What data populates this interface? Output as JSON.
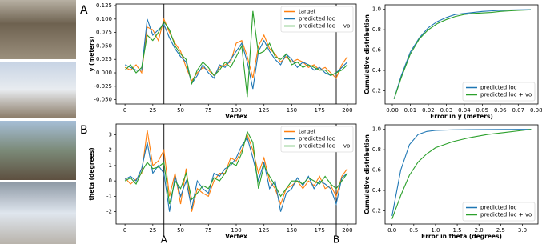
{
  "chart_data": [
    {
      "type": "line",
      "panel_label": "A",
      "xlabel": "Vertex",
      "ylabel": "y (meters)",
      "x": [
        0,
        5,
        10,
        15,
        20,
        25,
        30,
        35,
        40,
        45,
        50,
        55,
        60,
        65,
        70,
        75,
        80,
        85,
        90,
        95,
        100,
        105,
        110,
        115,
        120,
        125,
        130,
        135,
        140,
        145,
        150,
        155,
        160,
        165,
        170,
        175,
        180,
        185,
        190,
        195,
        200
      ],
      "series": [
        {
          "name": "target",
          "color": "#ff7f0e",
          "values": [
            0.01,
            0.005,
            0.015,
            0.0,
            0.085,
            0.08,
            0.06,
            0.1,
            0.075,
            0.055,
            0.04,
            0.01,
            -0.015,
            0.0,
            0.01,
            0.005,
            -0.005,
            0.01,
            0.015,
            0.02,
            0.055,
            0.06,
            0.03,
            -0.01,
            0.05,
            0.07,
            0.045,
            0.035,
            0.02,
            0.03,
            0.02,
            0.025,
            0.02,
            0.01,
            0.015,
            0.005,
            0.01,
            0.0,
            -0.01,
            0.015,
            0.03
          ]
        },
        {
          "name": "predicted loc",
          "color": "#1f77b4",
          "values": [
            0.015,
            0.01,
            0.005,
            0.005,
            0.1,
            0.07,
            0.08,
            0.09,
            0.065,
            0.045,
            0.03,
            0.02,
            -0.02,
            -0.005,
            0.015,
            0.0,
            -0.01,
            0.015,
            0.01,
            0.025,
            0.04,
            0.055,
            0.02,
            -0.03,
            0.04,
            0.06,
            0.04,
            0.025,
            0.015,
            0.035,
            0.025,
            0.01,
            0.02,
            0.015,
            0.005,
            0.01,
            0.0,
            -0.005,
            0.0,
            0.01,
            0.02
          ]
        },
        {
          "name": "predicted loc + vo",
          "color": "#2ca02c",
          "values": [
            0.005,
            0.015,
            0.0,
            0.01,
            0.07,
            0.06,
            0.075,
            0.095,
            0.08,
            0.05,
            0.035,
            0.025,
            -0.02,
            0.005,
            0.02,
            0.01,
            -0.005,
            0.005,
            0.02,
            0.01,
            0.03,
            0.05,
            -0.045,
            0.115,
            0.035,
            0.04,
            0.055,
            0.03,
            0.025,
            0.035,
            0.015,
            0.02,
            0.01,
            0.015,
            0.01,
            0.005,
            0.005,
            -0.005,
            0.0,
            0.005,
            0.015
          ]
        }
      ],
      "xlim": [
        -8,
        208
      ],
      "xticks": [
        0,
        25,
        50,
        75,
        100,
        125,
        150,
        175,
        200
      ],
      "ylim": [
        -0.058,
        0.128
      ],
      "yticks": [
        {
          "value": -0.05,
          "label": "-0.050"
        },
        -0.025,
        {
          "value": 0,
          "label": "0.000"
        },
        0.025,
        {
          "value": 0.05,
          "label": "0.050"
        },
        0.075,
        {
          "value": 0.1,
          "label": "0.100"
        },
        0.125
      ],
      "vlines": [
        35,
        190
      ],
      "legend": "upper right"
    },
    {
      "type": "line",
      "panel_label": "B",
      "xlabel": "Vertex",
      "ylabel": "theta (degrees)",
      "x": [
        0,
        5,
        10,
        15,
        20,
        25,
        30,
        35,
        40,
        45,
        50,
        55,
        60,
        65,
        70,
        75,
        80,
        85,
        90,
        95,
        100,
        105,
        110,
        115,
        120,
        125,
        130,
        135,
        140,
        145,
        150,
        155,
        160,
        165,
        170,
        175,
        180,
        185,
        190,
        195,
        200
      ],
      "series": [
        {
          "name": "target",
          "color": "#ff7f0e",
          "values": [
            0.2,
            -0.2,
            0.1,
            0.5,
            3.3,
            1.0,
            1.3,
            2.0,
            -1.0,
            0.5,
            -1.5,
            0.8,
            -2.0,
            -0.5,
            -0.8,
            -1.0,
            0.0,
            0.5,
            0.5,
            1.5,
            1.3,
            2.0,
            3.0,
            2.0,
            0.5,
            1.5,
            0.0,
            -0.5,
            -1.5,
            -0.5,
            -0.3,
            0.0,
            -0.5,
            0.0,
            -0.3,
            0.3,
            -0.5,
            -0.3,
            -1.0,
            0.3,
            0.8
          ]
        },
        {
          "name": "predicted loc",
          "color": "#1f77b4",
          "values": [
            0.1,
            0.3,
            0.0,
            0.8,
            2.5,
            0.5,
            1.0,
            0.5,
            -2.0,
            0.3,
            -1.0,
            0.0,
            -1.8,
            0.0,
            -0.5,
            -0.8,
            0.5,
            0.3,
            0.8,
            1.0,
            1.5,
            2.3,
            2.8,
            1.5,
            0.0,
            1.2,
            -0.5,
            0.0,
            -2.0,
            -0.8,
            -0.5,
            0.2,
            -0.3,
            0.3,
            -0.5,
            0.0,
            -0.2,
            -0.5,
            -1.5,
            0.2,
            0.5
          ]
        },
        {
          "name": "predicted loc + vo",
          "color": "#2ca02c",
          "values": [
            0.0,
            0.2,
            -0.2,
            0.6,
            1.2,
            0.8,
            0.9,
            1.2,
            -1.5,
            0.0,
            -0.5,
            0.5,
            -1.2,
            -0.8,
            -0.3,
            -0.5,
            0.2,
            0.0,
            0.5,
            1.2,
            1.0,
            1.8,
            3.2,
            2.5,
            -0.5,
            1.0,
            0.3,
            -0.3,
            -1.0,
            -0.5,
            0.0,
            0.0,
            -0.2,
            0.2,
            0.0,
            -0.2,
            0.3,
            -0.2,
            -0.5,
            0.0,
            0.5
          ]
        }
      ],
      "xlim": [
        -8,
        208
      ],
      "xticks": [
        0,
        25,
        50,
        75,
        100,
        125,
        150,
        175,
        200
      ],
      "ylim": [
        -2.8,
        3.7
      ],
      "yticks": [
        -2,
        -1,
        0,
        1,
        2,
        3
      ],
      "vlines": [
        35,
        190
      ],
      "markers": [
        {
          "x": 35,
          "label": "A"
        },
        {
          "x": 190,
          "label": "B"
        }
      ],
      "legend": "upper right"
    },
    {
      "type": "line",
      "xlabel": "Error in y (meters)",
      "ylabel": "Cumulative distribution",
      "x": [
        0.001,
        0.005,
        0.01,
        0.015,
        0.02,
        0.025,
        0.03,
        0.035,
        0.04,
        0.045,
        0.05,
        0.055,
        0.06,
        0.065,
        0.07,
        0.077
      ],
      "series": [
        {
          "name": "predicted loc",
          "color": "#1f77b4",
          "values": [
            0.12,
            0.35,
            0.58,
            0.72,
            0.82,
            0.88,
            0.92,
            0.95,
            0.96,
            0.97,
            0.98,
            0.985,
            0.99,
            0.993,
            0.995,
            0.997
          ]
        },
        {
          "name": "predicted loc + vo",
          "color": "#2ca02c",
          "values": [
            0.12,
            0.33,
            0.56,
            0.71,
            0.8,
            0.86,
            0.9,
            0.93,
            0.95,
            0.96,
            0.965,
            0.97,
            0.98,
            0.985,
            0.99,
            0.995
          ]
        }
      ],
      "xlim": [
        -0.004,
        0.081
      ],
      "xticks": [
        {
          "value": 0,
          "label": "0.00"
        },
        0.01,
        0.02,
        0.03,
        0.04,
        0.05,
        0.06,
        0.07,
        0.08
      ],
      "ylim": [
        0.07,
        1.045
      ],
      "yticks": [
        0.2,
        0.4,
        0.6,
        0.8,
        {
          "value": 1,
          "label": "1.0"
        }
      ],
      "legend": "lower right"
    },
    {
      "type": "line",
      "xlabel": "Error in theta (degrees)",
      "ylabel": "Cumulative distribution",
      "x": [
        0,
        0.2,
        0.4,
        0.6,
        0.8,
        1.0,
        1.4,
        1.8,
        2.2,
        2.6,
        3.0,
        3.2
      ],
      "series": [
        {
          "name": "predicted loc",
          "color": "#1f77b4",
          "values": [
            0.15,
            0.6,
            0.85,
            0.95,
            0.98,
            0.99,
            0.995,
            0.997,
            0.998,
            0.999,
            1.0,
            1.0
          ]
        },
        {
          "name": "predicted loc + vo",
          "color": "#2ca02c",
          "values": [
            0.12,
            0.35,
            0.55,
            0.68,
            0.76,
            0.82,
            0.88,
            0.92,
            0.95,
            0.97,
            0.99,
            1.0
          ]
        }
      ],
      "xlim": [
        -0.16,
        3.36
      ],
      "xticks": [
        {
          "value": 0,
          "label": "0.0"
        },
        0.5,
        {
          "value": 1,
          "label": "1.0"
        },
        1.5,
        {
          "value": 2,
          "label": "2.0"
        },
        2.5,
        {
          "value": 3,
          "label": "3.0"
        }
      ],
      "ylim": [
        0.07,
        1.045
      ],
      "yticks": [
        0.2,
        0.4,
        0.6,
        0.8,
        {
          "value": 1,
          "label": "1.0"
        }
      ],
      "legend": "lower right"
    }
  ]
}
